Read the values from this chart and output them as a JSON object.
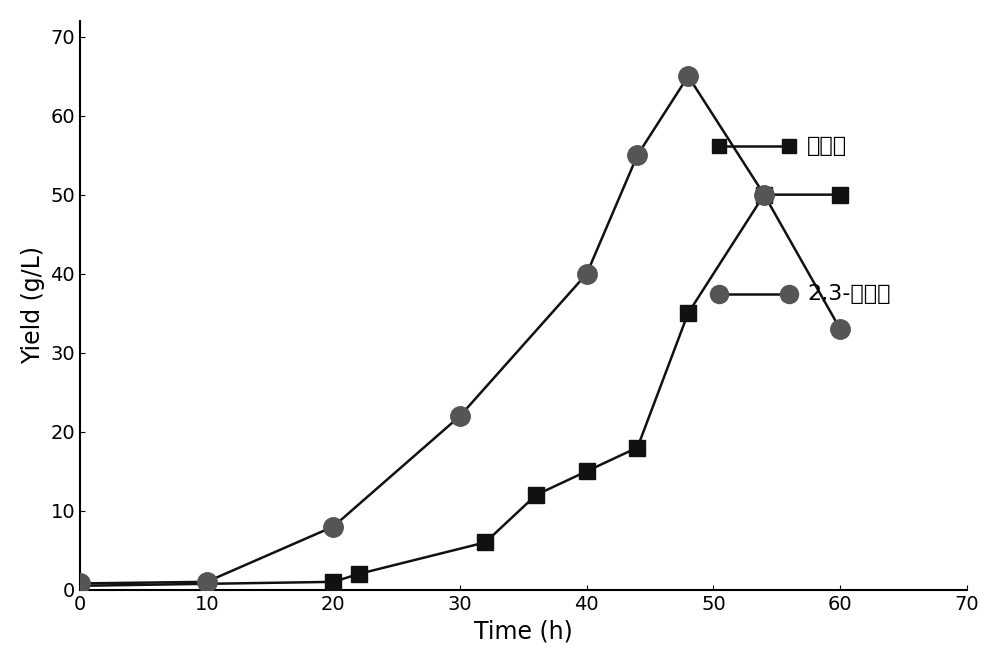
{
  "acetoin_x": [
    0,
    20,
    22,
    32,
    36,
    40,
    44,
    48,
    54,
    60
  ],
  "acetoin_y": [
    0.5,
    1.0,
    2.0,
    6.0,
    12.0,
    15.0,
    18.0,
    35.0,
    50.0,
    50.0
  ],
  "butanediol_x": [
    0,
    10,
    20,
    30,
    40,
    44,
    48,
    54,
    60
  ],
  "butanediol_y": [
    0.8,
    1.0,
    8.0,
    22.0,
    40.0,
    55.0,
    65.0,
    50.0,
    33.0
  ],
  "xlabel": "Time (h)",
  "ylabel": "Yield (g/L)",
  "legend_acetoin": "乙偶姻",
  "legend_butanediol": "2,3-丁二醇",
  "xlim": [
    0,
    70
  ],
  "ylim": [
    0,
    72
  ],
  "xticks": [
    0,
    10,
    20,
    30,
    40,
    50,
    60,
    70
  ],
  "yticks": [
    0,
    10,
    20,
    30,
    40,
    50,
    60,
    70
  ],
  "line_color": "#111111",
  "marker_square_color": "#111111",
  "marker_circle_color": "#555555",
  "background_color": "#ffffff",
  "fontsize_axis_label": 17,
  "fontsize_tick": 14,
  "fontsize_legend": 16
}
